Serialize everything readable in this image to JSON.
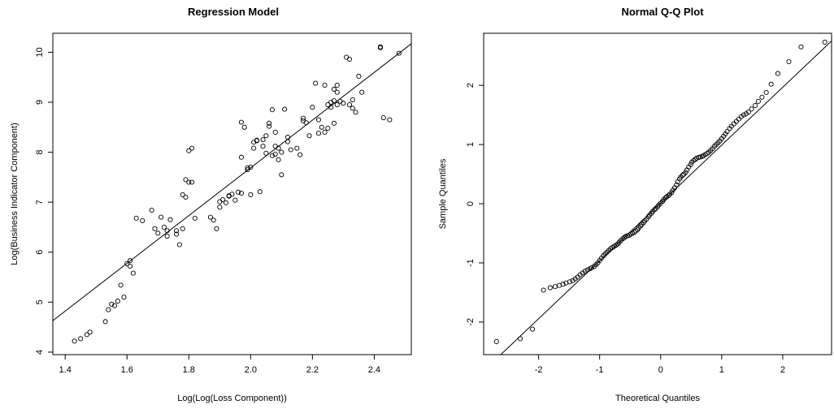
{
  "chart_data": [
    {
      "type": "scatter",
      "title": "Regression Model",
      "xlabel": "Log(Log(Loss Component))",
      "ylabel": "Log(Business Indicator Component)",
      "xlim": [
        1.36,
        2.52
      ],
      "ylim": [
        3.95,
        10.38
      ],
      "xticks": [
        1.4,
        1.6,
        1.8,
        2.0,
        2.2,
        2.4
      ],
      "xtick_labels": [
        "1.4",
        "1.6",
        "1.8",
        "2.0",
        "2.2",
        "2.4"
      ],
      "yticks": [
        4,
        5,
        6,
        7,
        8,
        9,
        10
      ],
      "ytick_labels": [
        "4",
        "5",
        "6",
        "7",
        "8",
        "9",
        "10"
      ],
      "regression_line": {
        "x": [
          1.36,
          2.52
        ],
        "y": [
          4.63,
          10.17
        ]
      },
      "grid": false,
      "series": [
        {
          "x": [
            1.43,
            1.45,
            1.47,
            1.48,
            1.53,
            1.54,
            1.55,
            1.56,
            1.57,
            1.58,
            1.59,
            1.6,
            1.61,
            1.61,
            1.62,
            1.63,
            1.65,
            1.68,
            1.69,
            1.7,
            1.71,
            1.72,
            1.73,
            1.73,
            1.74,
            1.76,
            1.76,
            1.77,
            1.78,
            1.78,
            1.79,
            1.79,
            1.8,
            1.8,
            1.81,
            1.81,
            1.82,
            1.87,
            1.88,
            1.89,
            1.9,
            1.9,
            1.91,
            1.92,
            1.93,
            1.93,
            1.94,
            1.95,
            1.96,
            1.97,
            1.97,
            1.97,
            1.98,
            1.99,
            1.99,
            2.0,
            2.0,
            2.01,
            2.01,
            2.02,
            2.02,
            2.03,
            2.04,
            2.04,
            2.05,
            2.05,
            2.06,
            2.06,
            2.07,
            2.07,
            2.08,
            2.08,
            2.08,
            2.09,
            2.09,
            2.1,
            2.1,
            2.11,
            2.12,
            2.12,
            2.13,
            2.15,
            2.16,
            2.17,
            2.17,
            2.18,
            2.19,
            2.2,
            2.21,
            2.22,
            2.22,
            2.23,
            2.24,
            2.24,
            2.25,
            2.25,
            2.26,
            2.26,
            2.27,
            2.27,
            2.27,
            2.28,
            2.28,
            2.28,
            2.29,
            2.3,
            2.31,
            2.32,
            2.32,
            2.33,
            2.33,
            2.34,
            2.35,
            2.36,
            2.42,
            2.42,
            2.43,
            2.45,
            2.48
          ],
          "y": [
            4.22,
            4.27,
            4.35,
            4.4,
            4.61,
            4.85,
            4.96,
            4.93,
            5.02,
            5.34,
            5.1,
            5.77,
            5.72,
            5.83,
            5.58,
            6.68,
            6.63,
            6.84,
            6.47,
            6.38,
            6.7,
            6.5,
            6.43,
            6.32,
            6.65,
            6.36,
            6.43,
            6.15,
            6.47,
            7.15,
            7.1,
            7.45,
            7.4,
            8.03,
            7.4,
            8.08,
            6.68,
            6.7,
            6.64,
            6.47,
            6.9,
            7.01,
            7.05,
            6.99,
            7.13,
            7.12,
            7.16,
            7.04,
            7.2,
            7.18,
            8.6,
            7.9,
            8.5,
            7.69,
            7.65,
            7.7,
            7.15,
            8.2,
            8.08,
            8.24,
            8.23,
            7.21,
            8.12,
            8.25,
            8.33,
            7.98,
            8.52,
            8.58,
            8.85,
            7.93,
            7.96,
            8.4,
            8.12,
            7.85,
            8.08,
            7.55,
            8.0,
            8.86,
            8.3,
            8.21,
            8.05,
            8.08,
            7.95,
            8.63,
            8.68,
            8.59,
            8.33,
            8.9,
            9.38,
            8.38,
            8.65,
            8.5,
            9.34,
            8.4,
            8.95,
            8.48,
            8.9,
            9.0,
            8.58,
            9.03,
            9.26,
            9.34,
            9.2,
            8.95,
            9.02,
            8.98,
            9.9,
            9.86,
            8.95,
            9.05,
            8.88,
            8.8,
            9.52,
            9.2,
            10.09,
            10.11,
            8.69,
            8.65,
            9.98
          ]
        }
      ]
    },
    {
      "type": "scatter",
      "title": "Normal Q-Q Plot",
      "xlabel": "Theoretical Quantiles",
      "ylabel": "Sample Quantiles",
      "xlim": [
        -2.9,
        2.8
      ],
      "ylim": [
        -2.55,
        2.88
      ],
      "xticks": [
        -2,
        -1,
        0,
        1,
        2
      ],
      "xtick_labels": [
        "-2",
        "-1",
        "0",
        "1",
        "2"
      ],
      "yticks": [
        -2,
        -1,
        0,
        1,
        2
      ],
      "ytick_labels": [
        "-2",
        "-1",
        "0",
        "1",
        "2"
      ],
      "reference_line": {
        "x": [
          -2.62,
          2.8
        ],
        "y": [
          -2.55,
          2.75
        ]
      },
      "grid": false,
      "series": [
        {
          "x": [
            -2.69,
            -2.3,
            -2.1,
            -1.92,
            -1.81,
            -1.73,
            -1.66,
            -1.6,
            -1.55,
            -1.49,
            -1.44,
            -1.4,
            -1.36,
            -1.32,
            -1.28,
            -1.24,
            -1.2,
            -1.16,
            -1.13,
            -1.09,
            -1.06,
            -1.03,
            -1.0,
            -0.97,
            -0.94,
            -0.91,
            -0.88,
            -0.85,
            -0.82,
            -0.79,
            -0.76,
            -0.73,
            -0.7,
            -0.68,
            -0.65,
            -0.62,
            -0.59,
            -0.57,
            -0.54,
            -0.51,
            -0.49,
            -0.46,
            -0.43,
            -0.41,
            -0.38,
            -0.36,
            -0.33,
            -0.31,
            -0.28,
            -0.26,
            -0.23,
            -0.2,
            -0.18,
            -0.15,
            -0.13,
            -0.1,
            -0.08,
            -0.05,
            -0.03,
            0.0,
            0.03,
            0.05,
            0.08,
            0.1,
            0.13,
            0.15,
            0.18,
            0.2,
            0.23,
            0.26,
            0.28,
            0.31,
            0.33,
            0.36,
            0.38,
            0.41,
            0.43,
            0.46,
            0.49,
            0.51,
            0.54,
            0.57,
            0.59,
            0.62,
            0.65,
            0.68,
            0.7,
            0.73,
            0.76,
            0.79,
            0.82,
            0.85,
            0.88,
            0.91,
            0.94,
            0.97,
            1.0,
            1.03,
            1.06,
            1.09,
            1.13,
            1.16,
            1.2,
            1.24,
            1.28,
            1.32,
            1.36,
            1.4,
            1.44,
            1.49,
            1.55,
            1.6,
            1.66,
            1.73,
            1.81,
            1.92,
            2.1,
            2.3,
            2.69
          ],
          "y": [
            -2.33,
            -2.28,
            -2.12,
            -1.46,
            -1.42,
            -1.4,
            -1.38,
            -1.36,
            -1.34,
            -1.32,
            -1.3,
            -1.27,
            -1.24,
            -1.2,
            -1.17,
            -1.14,
            -1.12,
            -1.1,
            -1.08,
            -1.06,
            -1.03,
            -1.0,
            -0.96,
            -0.92,
            -0.88,
            -0.85,
            -0.82,
            -0.79,
            -0.76,
            -0.74,
            -0.72,
            -0.7,
            -0.68,
            -0.65,
            -0.62,
            -0.59,
            -0.57,
            -0.55,
            -0.54,
            -0.53,
            -0.51,
            -0.5,
            -0.48,
            -0.46,
            -0.44,
            -0.41,
            -0.38,
            -0.35,
            -0.32,
            -0.29,
            -0.26,
            -0.22,
            -0.19,
            -0.16,
            -0.13,
            -0.1,
            -0.08,
            -0.05,
            -0.02,
            0.01,
            0.04,
            0.07,
            0.1,
            0.12,
            0.14,
            0.16,
            0.19,
            0.23,
            0.27,
            0.32,
            0.37,
            0.42,
            0.45,
            0.48,
            0.5,
            0.53,
            0.57,
            0.62,
            0.66,
            0.7,
            0.73,
            0.75,
            0.77,
            0.78,
            0.79,
            0.8,
            0.81,
            0.83,
            0.85,
            0.87,
            0.9,
            0.93,
            0.97,
            1.0,
            1.03,
            1.06,
            1.1,
            1.14,
            1.18,
            1.22,
            1.27,
            1.31,
            1.35,
            1.39,
            1.43,
            1.47,
            1.5,
            1.52,
            1.55,
            1.6,
            1.66,
            1.73,
            1.8,
            1.88,
            2.02,
            2.2,
            2.4,
            2.65,
            2.73
          ]
        }
      ]
    }
  ]
}
